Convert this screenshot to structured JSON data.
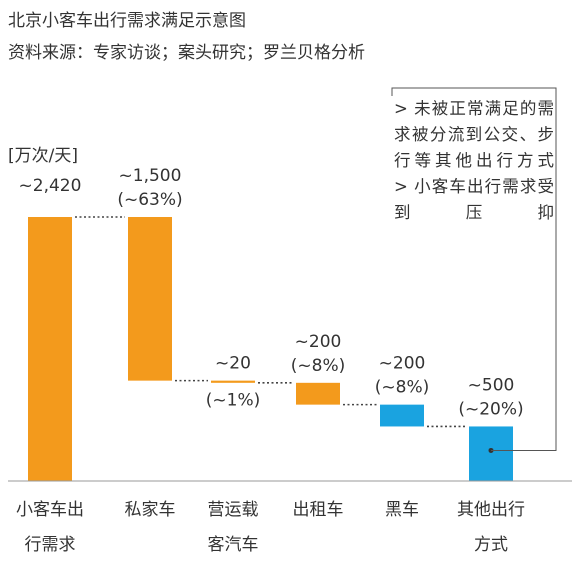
{
  "title": "北京小客车出行需求满足示意图",
  "source": "资料来源：专家访谈；案头研究；罗兰贝格分析",
  "chart_data": {
    "type": "bar",
    "unit_label": "[万次/天]",
    "categories": [
      "小客车出行需求",
      "私家车",
      "营运载客汽车",
      "出租车",
      "黑车",
      "其他出行方式"
    ],
    "category_lines": [
      [
        "小客车出",
        "行需求"
      ],
      [
        "私家车"
      ],
      [
        "营运载",
        "客汽车"
      ],
      [
        "出租车"
      ],
      [
        "黑车"
      ],
      [
        "其他出行",
        "方式"
      ]
    ],
    "values": [
      2420,
      1500,
      20,
      200,
      200,
      500
    ],
    "value_labels": [
      "~2,420",
      "~1,500",
      "~20",
      "~200",
      "~200",
      "~500"
    ],
    "share_labels": [
      "",
      "(~63%)",
      "(~1%)",
      "(~8%)",
      "(~8%)",
      "(~20%)"
    ],
    "bar_colors": [
      "#f39a1c",
      "#f39a1c",
      "#f39a1c",
      "#f39a1c",
      "#1aa3e0",
      "#1aa3e0"
    ],
    "waterfall": true,
    "ylim": [
      0,
      2420
    ]
  },
  "notes": [
    "> 未被正常满足的需求被分流到公交、步行等其他出行方式",
    "> 小客车出行需求受到压抑"
  ]
}
